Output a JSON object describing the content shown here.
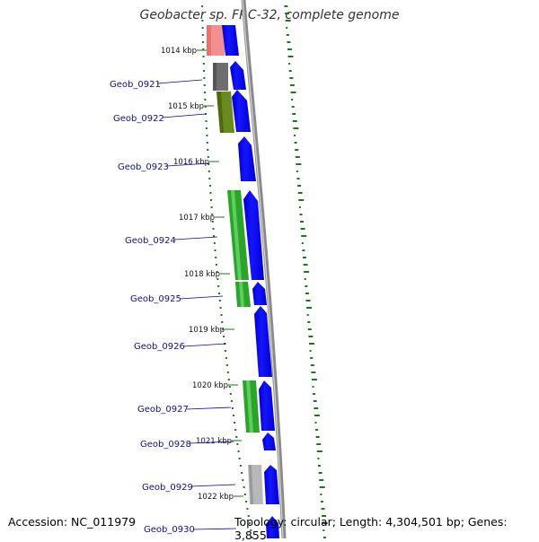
{
  "header": {
    "title": "Geobacter sp. FRC-32, complete genome"
  },
  "footer": {
    "accession": "Accession: NC_011979",
    "topology": "Topology: circular; Length: 4,304,501 bp; Genes: 3,855"
  },
  "colors": {
    "cds_forward": "#1010e6",
    "backbone": "#8a8a8a",
    "gc_marks": "#1a7a1a",
    "label_text": "#0f0f8c"
  },
  "ticks": [
    {
      "label": "1014 kbp"
    },
    {
      "label": "1015 kbp"
    },
    {
      "label": "1016 kbp"
    },
    {
      "label": "1017 kbp"
    },
    {
      "label": "1018 kbp"
    },
    {
      "label": "1019 kbp"
    },
    {
      "label": "1020 kbp"
    },
    {
      "label": "1021 kbp"
    },
    {
      "label": "1022 kbp"
    }
  ],
  "genes": [
    {
      "label": "Geob_0921",
      "cog_color": "#6e6e6e"
    },
    {
      "label": "Geob_0922",
      "cog_color": "#6b8a1e"
    },
    {
      "label": "Geob_0923",
      "cog_color": ""
    },
    {
      "label": "Geob_0924",
      "cog_color": "#1f9a1f"
    },
    {
      "label": "Geob_0925",
      "cog_color": "#1f9a1f"
    },
    {
      "label": "Geob_0926",
      "cog_color": ""
    },
    {
      "label": "Geob_0927",
      "cog_color": "#1f9a1f"
    },
    {
      "label": "Geob_0928",
      "cog_color": ""
    },
    {
      "label": "Geob_0929",
      "cog_color": "#b4b4b4"
    },
    {
      "label": "Geob_0930",
      "cog_color": ""
    }
  ]
}
